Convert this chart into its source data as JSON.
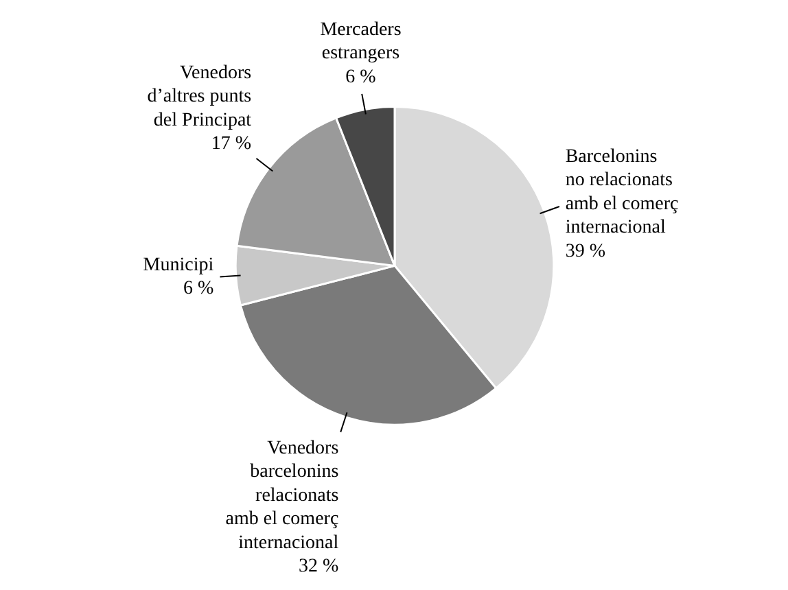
{
  "chart_data": {
    "type": "pie",
    "categories": [
      "Barcelonins\nno relacionats\namb el comerç\ninternacional",
      "Venedors\nbarcelonins\nrelacionats\namb el comerç\ninternacional",
      "Municipi",
      "Venedors\nd’altres punts\ndel Principat",
      "Mercaders\nestrangers"
    ],
    "values": [
      39,
      32,
      6,
      17,
      6
    ],
    "value_labels": [
      "39 %",
      "32 %",
      "6 %",
      "17 %",
      "6 %"
    ],
    "colors": [
      "#d9d9d9",
      "#7a7a7a",
      "#c8c8c8",
      "#9a9a9a",
      "#474747"
    ]
  }
}
